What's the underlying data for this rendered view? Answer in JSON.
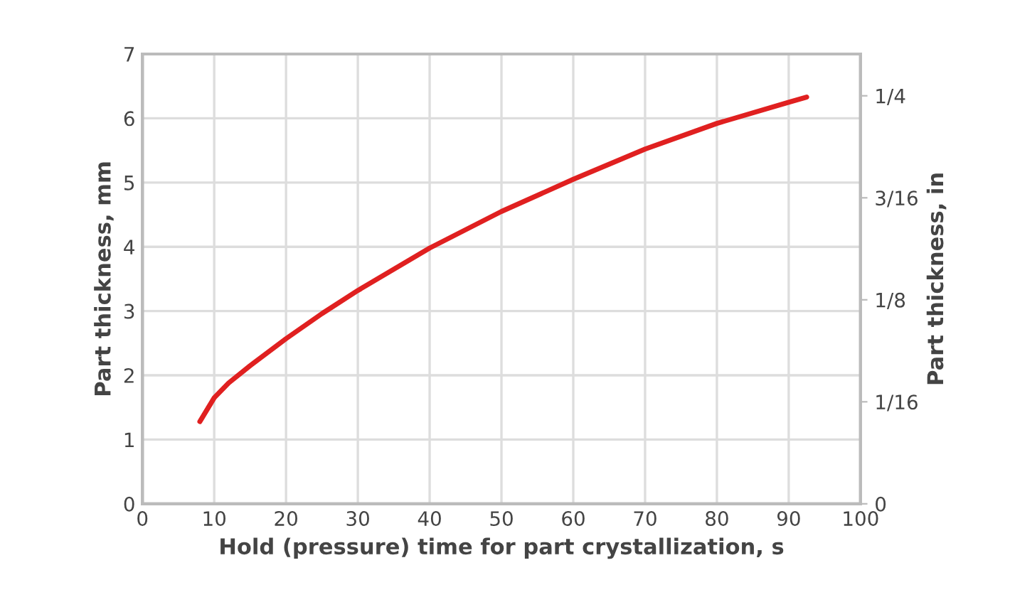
{
  "chart_data": {
    "type": "line",
    "xlabel": "Hold (pressure) time for part crystallization, s",
    "ylabel": "Part thickness, mm",
    "y2label": "Part thickness, in",
    "x": [
      8,
      10,
      12,
      15,
      20,
      25,
      30,
      40,
      50,
      60,
      70,
      80,
      90,
      92.5
    ],
    "series": [
      {
        "color": "#e02020",
        "values": [
          1.28,
          1.65,
          1.88,
          2.15,
          2.57,
          2.96,
          3.32,
          3.98,
          4.55,
          5.05,
          5.52,
          5.92,
          6.25,
          6.33
        ]
      }
    ],
    "xlim": [
      0,
      100
    ],
    "xticks": [
      0,
      10,
      20,
      30,
      40,
      50,
      60,
      70,
      80,
      90,
      100
    ],
    "ylim": [
      0,
      7
    ],
    "yticks": [
      0,
      1,
      2,
      3,
      4,
      5,
      6,
      7
    ],
    "y2lim": [
      0,
      0.2756
    ],
    "y2ticks": [
      0,
      {
        "value": 0.0625,
        "label": "1/16"
      },
      {
        "value": 0.125,
        "label": "1/8"
      },
      {
        "value": 0.1875,
        "label": "3/16"
      },
      {
        "value": 0.25,
        "label": "1/4"
      }
    ],
    "grid": true,
    "marker": "none",
    "line_style": "solid"
  }
}
